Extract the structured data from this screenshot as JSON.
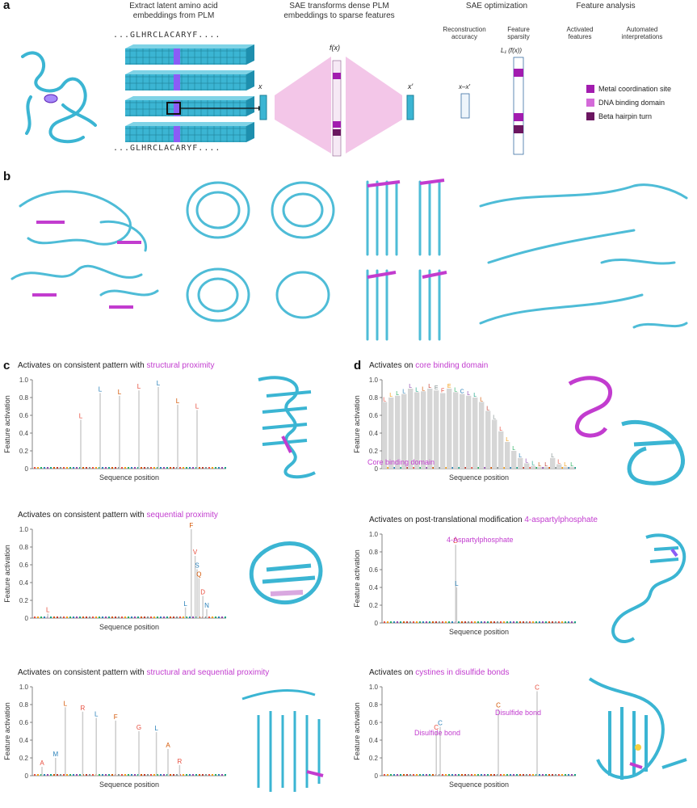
{
  "panels": {
    "a": "a",
    "b": "b",
    "c": "c",
    "d": "d"
  },
  "panel_a": {
    "extract_title": "Extract latent amino acid\nembeddings from PLM",
    "sae_title": "SAE transforms dense PLM\nembeddings to sparse features",
    "opt_title": "SAE optimization",
    "analysis_title": "Feature analysis",
    "recon_label": "Reconstruction\naccuracy",
    "sparsity_label": "Feature\nsparsity",
    "activated_label": "Activated\nfeatures",
    "auto_interp_label": "Automated\ninterpretations",
    "seq_top": "...GLHRCLACARYF....",
    "seq_bottom": "...GLHRCLACARYF....",
    "x_label": "x",
    "fx_label": "f(x)",
    "xprime_label": "x′",
    "diff_label": "x–x′",
    "l1_label": "L₁ (f(x))",
    "legend": [
      {
        "label": "Metal coordination site",
        "color": "#a21caf"
      },
      {
        "label": "DNA binding domain",
        "color": "#d46ad9"
      },
      {
        "label": "Beta hairpin turn",
        "color": "#6b1660"
      }
    ]
  },
  "plots": {
    "c1": {
      "prefix": "Activates on consistent pattern with ",
      "highlight": "structural proximity"
    },
    "c2": {
      "prefix": "Activates on consistent pattern with ",
      "highlight": "sequential proximity"
    },
    "c3": {
      "prefix": "Activates on consistent pattern with ",
      "highlight": "structural and sequential proximity"
    },
    "d1": {
      "prefix": "Activates on ",
      "highlight": "core binding domain"
    },
    "d2": {
      "prefix": "Activates on post-translational modification ",
      "highlight": "4-aspartylphosphate"
    },
    "d3": {
      "prefix": "Activates on ",
      "highlight": "cystines in disulfide bonds"
    }
  },
  "colors": {
    "cyan": "#3bb5d3",
    "magenta": "#c23ccf",
    "purple": "#8b5cf6",
    "pink_fill": "#f3c6e8"
  },
  "chart_data": [
    {
      "id": "c1",
      "type": "bar",
      "ylabel": "Feature activation",
      "xlabel": "Sequence position",
      "ylim": [
        0,
        1.0
      ],
      "yticks": [
        0,
        0.2,
        0.4,
        0.6,
        0.8,
        1.0
      ],
      "x": [
        0.25,
        0.35,
        0.45,
        0.55,
        0.65,
        0.75,
        0.85
      ],
      "values": [
        0.55,
        0.85,
        0.82,
        0.88,
        0.92,
        0.72,
        0.66
      ],
      "labels": [
        "L",
        "L",
        "L",
        "L",
        "L",
        "L",
        "L"
      ],
      "annotations": []
    },
    {
      "id": "c2",
      "type": "bar",
      "ylabel": "Feature activation",
      "xlabel": "Sequence position",
      "ylim": [
        0,
        1.0
      ],
      "yticks": [
        0,
        0.2,
        0.4,
        0.6,
        0.8,
        1.0
      ],
      "x": [
        0.08,
        0.79,
        0.82,
        0.84,
        0.85,
        0.86,
        0.88,
        0.9
      ],
      "values": [
        0.05,
        0.12,
        1.0,
        0.7,
        0.55,
        0.45,
        0.25,
        0.1
      ],
      "labels": [
        "L",
        "L",
        "F",
        "V",
        "S",
        "Q",
        "D",
        "N"
      ],
      "annotations": []
    },
    {
      "id": "c3",
      "type": "bar",
      "ylabel": "Feature activation",
      "xlabel": "Sequence position",
      "ylim": [
        0,
        1.0
      ],
      "yticks": [
        0,
        0.2,
        0.4,
        0.6,
        0.8,
        1.0
      ],
      "x": [
        0.05,
        0.12,
        0.17,
        0.26,
        0.33,
        0.43,
        0.55,
        0.64,
        0.7,
        0.76
      ],
      "values": [
        0.1,
        0.2,
        0.77,
        0.72,
        0.65,
        0.62,
        0.5,
        0.49,
        0.3,
        0.12
      ],
      "labels": [
        "A",
        "M",
        "L",
        "R",
        "L",
        "F",
        "G",
        "L",
        "A",
        "R"
      ],
      "annotations": []
    },
    {
      "id": "d1",
      "type": "bar",
      "ylabel": "Feature activation",
      "xlabel": "Sequence position",
      "ylim": [
        0,
        1.0
      ],
      "yticks": [
        0,
        0.2,
        0.4,
        0.6,
        0.8,
        1.0
      ],
      "profile": [
        0.75,
        0.8,
        0.82,
        0.84,
        0.9,
        0.86,
        0.87,
        0.9,
        0.88,
        0.85,
        0.9,
        0.86,
        0.84,
        0.82,
        0.8,
        0.75,
        0.65,
        0.55,
        0.42,
        0.3,
        0.2,
        0.12,
        0.06,
        0.03,
        0.02,
        0.02,
        0.12,
        0.05,
        0.02,
        0.02
      ],
      "labels": [
        "L",
        "L",
        "L",
        "L",
        "L",
        "L",
        "L",
        "L",
        "E",
        "F",
        "E",
        "L",
        "C",
        "L",
        "L",
        "L",
        "L",
        "L",
        "L",
        "L",
        "L",
        "L",
        "L",
        "L",
        "L",
        "L",
        "L",
        "L",
        "L",
        "L"
      ],
      "annotations": [
        {
          "text": "Core binding domain"
        }
      ]
    },
    {
      "id": "d2",
      "type": "bar",
      "ylabel": "Feature activation",
      "xlabel": "Sequence position",
      "ylim": [
        0,
        1.0
      ],
      "yticks": [
        0,
        0.2,
        0.4,
        0.6,
        0.8,
        1.0
      ],
      "x": [
        0.38,
        0.385
      ],
      "values": [
        0.88,
        0.4
      ],
      "labels": [
        "D",
        "L"
      ],
      "annotations": [
        {
          "text": "4-Aspartylphosphate"
        }
      ]
    },
    {
      "id": "d3",
      "type": "bar",
      "ylabel": "Feature activation",
      "xlabel": "Sequence position",
      "ylim": [
        0,
        1.0
      ],
      "yticks": [
        0,
        0.2,
        0.4,
        0.6,
        0.8,
        1.0
      ],
      "x": [
        0.28,
        0.3,
        0.6,
        0.8
      ],
      "values": [
        0.5,
        0.55,
        0.75,
        0.95
      ],
      "labels": [
        "C",
        "C",
        "C",
        "C"
      ],
      "annotations": [
        {
          "text": "Disulfide bond"
        },
        {
          "text": "Disulfide bond"
        }
      ]
    }
  ]
}
